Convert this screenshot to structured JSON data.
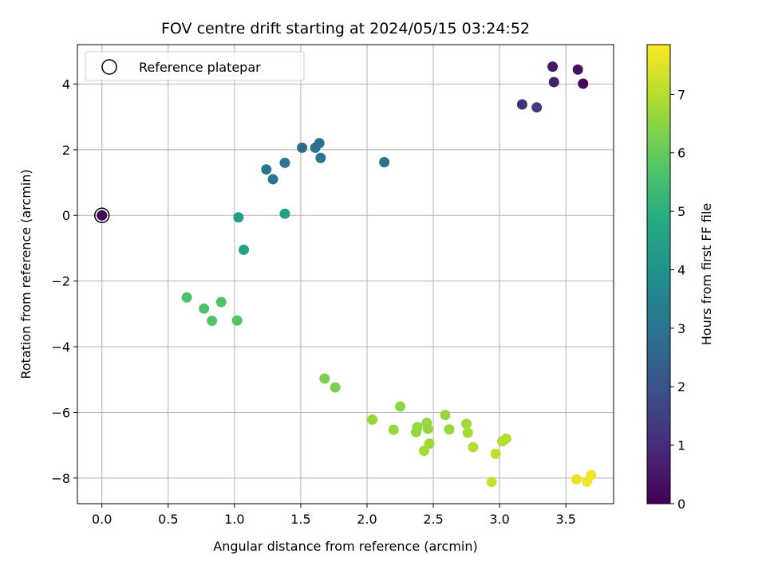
{
  "chart_data": {
    "type": "scatter",
    "title": "FOV centre drift starting at 2024/05/15 03:24:52",
    "xlabel": "Angular distance from reference (arcmin)",
    "ylabel": "Rotation from reference (arcmin)",
    "xlim": [
      -0.185,
      3.86
    ],
    "ylim": [
      -8.78,
      5.2
    ],
    "xticks": [
      0.0,
      0.5,
      1.0,
      1.5,
      2.0,
      2.5,
      3.0,
      3.5
    ],
    "xtick_labels": [
      "0.0",
      "0.5",
      "1.0",
      "1.5",
      "2.0",
      "2.5",
      "3.0",
      "3.5"
    ],
    "yticks": [
      -8,
      -6,
      -4,
      -2,
      0,
      2,
      4
    ],
    "ytick_labels": [
      "−8",
      "−6",
      "−4",
      "−2",
      "0",
      "2",
      "4"
    ],
    "grid": true,
    "legend": {
      "position": "upper-left",
      "entries": [
        "Reference platepar"
      ]
    },
    "colorbar": {
      "label": "Hours from first FF file",
      "colormap": "viridis",
      "range": [
        0,
        7.85
      ],
      "ticks": [
        0,
        1,
        2,
        3,
        4,
        5,
        6,
        7
      ],
      "tick_labels": [
        "0",
        "1",
        "2",
        "3",
        "4",
        "5",
        "6",
        "7"
      ]
    },
    "reference_point": {
      "x": 0.0,
      "y": 0.0
    },
    "points": [
      {
        "x": 0.0,
        "y": 0.0,
        "hours": 0.05
      },
      {
        "x": 3.4,
        "y": 4.53,
        "hours": 0.5
      },
      {
        "x": 3.59,
        "y": 4.44,
        "hours": 0.4
      },
      {
        "x": 3.41,
        "y": 4.06,
        "hours": 0.7
      },
      {
        "x": 3.63,
        "y": 4.01,
        "hours": 0.1
      },
      {
        "x": 3.17,
        "y": 3.38,
        "hours": 1.1
      },
      {
        "x": 3.28,
        "y": 3.29,
        "hours": 1.3
      },
      {
        "x": 1.51,
        "y": 2.06,
        "hours": 2.8
      },
      {
        "x": 1.61,
        "y": 2.06,
        "hours": 2.9
      },
      {
        "x": 1.64,
        "y": 2.2,
        "hours": 2.9
      },
      {
        "x": 1.65,
        "y": 1.75,
        "hours": 3.0
      },
      {
        "x": 1.38,
        "y": 1.6,
        "hours": 3.0
      },
      {
        "x": 2.13,
        "y": 1.62,
        "hours": 3.0
      },
      {
        "x": 1.24,
        "y": 1.4,
        "hours": 3.1
      },
      {
        "x": 1.29,
        "y": 1.1,
        "hours": 3.1
      },
      {
        "x": 1.03,
        "y": -0.06,
        "hours": 4.3
      },
      {
        "x": 1.38,
        "y": 0.05,
        "hours": 4.4
      },
      {
        "x": 1.07,
        "y": -1.05,
        "hours": 4.5
      },
      {
        "x": 0.64,
        "y": -2.5,
        "hours": 5.6
      },
      {
        "x": 0.77,
        "y": -2.84,
        "hours": 5.6
      },
      {
        "x": 0.9,
        "y": -2.64,
        "hours": 5.7
      },
      {
        "x": 0.83,
        "y": -3.21,
        "hours": 5.7
      },
      {
        "x": 1.02,
        "y": -3.2,
        "hours": 5.7
      },
      {
        "x": 1.68,
        "y": -4.97,
        "hours": 6.3
      },
      {
        "x": 1.76,
        "y": -5.24,
        "hours": 6.3
      },
      {
        "x": 2.25,
        "y": -5.82,
        "hours": 6.5
      },
      {
        "x": 2.04,
        "y": -6.22,
        "hours": 6.6
      },
      {
        "x": 2.2,
        "y": -6.53,
        "hours": 6.6
      },
      {
        "x": 2.38,
        "y": -6.45,
        "hours": 6.6
      },
      {
        "x": 2.37,
        "y": -6.6,
        "hours": 6.6
      },
      {
        "x": 2.45,
        "y": -6.32,
        "hours": 6.6
      },
      {
        "x": 2.46,
        "y": -6.5,
        "hours": 6.6
      },
      {
        "x": 2.47,
        "y": -6.95,
        "hours": 6.7
      },
      {
        "x": 2.43,
        "y": -7.17,
        "hours": 6.8
      },
      {
        "x": 2.59,
        "y": -6.08,
        "hours": 6.6
      },
      {
        "x": 2.62,
        "y": -6.52,
        "hours": 6.6
      },
      {
        "x": 2.75,
        "y": -6.35,
        "hours": 6.7
      },
      {
        "x": 2.76,
        "y": -6.62,
        "hours": 6.8
      },
      {
        "x": 2.8,
        "y": -7.06,
        "hours": 7.0
      },
      {
        "x": 2.97,
        "y": -7.26,
        "hours": 7.1
      },
      {
        "x": 3.02,
        "y": -6.88,
        "hours": 7.0
      },
      {
        "x": 3.05,
        "y": -6.8,
        "hours": 7.0
      },
      {
        "x": 2.94,
        "y": -8.12,
        "hours": 7.2
      },
      {
        "x": 3.58,
        "y": -8.04,
        "hours": 7.6
      },
      {
        "x": 3.66,
        "y": -8.11,
        "hours": 7.7
      },
      {
        "x": 3.69,
        "y": -7.91,
        "hours": 7.7
      }
    ]
  }
}
